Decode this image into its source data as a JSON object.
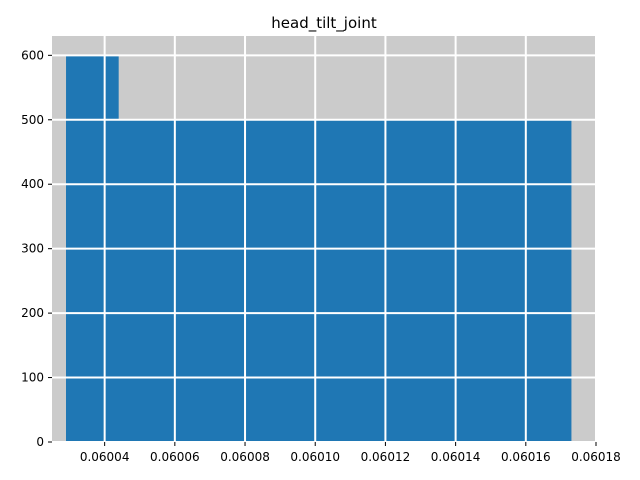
{
  "chart_data": {
    "type": "bar",
    "title": "head_tilt_joint",
    "xlabel": "",
    "ylabel": "",
    "xlim": [
      0.060025,
      0.06018
    ],
    "ylim": [
      0,
      630
    ],
    "xticks": [
      0.06004,
      0.06006,
      0.06008,
      0.0601,
      0.06012,
      0.06014,
      0.06016,
      0.06018
    ],
    "xtick_labels": [
      "0.06004",
      "0.06006",
      "0.06008",
      "0.06010",
      "0.06012",
      "0.06014",
      "0.06016",
      "0.06018"
    ],
    "yticks": [
      0,
      100,
      200,
      300,
      400,
      500,
      600
    ],
    "ytick_labels": [
      "0",
      "100",
      "200",
      "300",
      "400",
      "500",
      "600"
    ],
    "grid": true,
    "bars": [
      {
        "x_start": 0.060029,
        "x_end": 0.060044,
        "value": 600
      },
      {
        "x_start": 0.060029,
        "x_end": 0.060173,
        "value": 500
      }
    ],
    "colors": {
      "plot_background": "#cbcbcb",
      "bar": "#1f77b4",
      "grid": "#ffffff"
    }
  }
}
